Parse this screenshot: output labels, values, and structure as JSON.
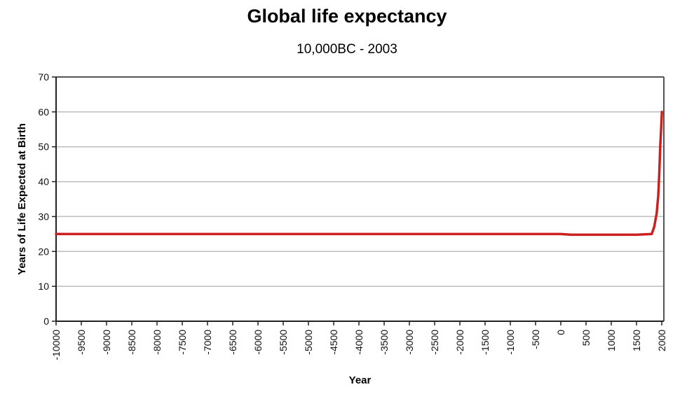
{
  "chart_data": {
    "type": "line",
    "title": "Global life expectancy",
    "subtitle": "10,000BC - 2003",
    "xlabel": "Year",
    "ylabel": "Years of Life Expected at Birth",
    "xlim": [
      -10000,
      2003
    ],
    "ylim": [
      0,
      70
    ],
    "x_tick_labels": [
      "-10000",
      "-9500",
      "-9000",
      "-8500",
      "-8000",
      "-7500",
      "-7000",
      "-6500",
      "-6000",
      "-5500",
      "-5000",
      "-4500",
      "-4000",
      "-3500",
      "-3000",
      "-2500",
      "-2000",
      "-1500",
      "-1000",
      "-500",
      "0",
      "500",
      "1000",
      "1500",
      "2000"
    ],
    "y_ticks": [
      0,
      10,
      20,
      30,
      40,
      50,
      60,
      70
    ],
    "grid": "horizontal",
    "series": [
      {
        "color": "#cc1f1f",
        "x": [
          -10000,
          0,
          200,
          500,
          1000,
          1500,
          1800,
          1850,
          1900,
          1930,
          1950,
          1970,
          1990,
          2003
        ],
        "y": [
          25,
          25,
          24.8,
          24.8,
          24.8,
          24.8,
          25,
          27,
          31,
          36,
          42,
          50,
          56,
          60
        ]
      }
    ]
  }
}
